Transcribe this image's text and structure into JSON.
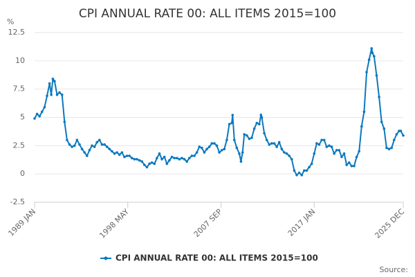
{
  "chart_data": {
    "type": "line",
    "title": "CPI ANNUAL RATE 00: ALL ITEMS 2015=100",
    "y_label": "%",
    "source": "Source:",
    "x": [
      1989.0,
      1989.25,
      1989.5,
      1989.75,
      1990.0,
      1990.25,
      1990.5,
      1990.67,
      1990.83,
      1991.0,
      1991.25,
      1991.5,
      1991.75,
      1992.0,
      1992.25,
      1992.5,
      1992.75,
      1993.0,
      1993.25,
      1993.5,
      1993.75,
      1994.0,
      1994.25,
      1994.5,
      1994.75,
      1995.0,
      1995.25,
      1995.5,
      1995.75,
      1996.0,
      1996.25,
      1996.5,
      1996.75,
      1997.0,
      1997.25,
      1997.5,
      1997.75,
      1998.0,
      1998.25,
      1998.5,
      1998.75,
      1999.0,
      1999.25,
      1999.5,
      1999.75,
      2000.0,
      2000.25,
      2000.5,
      2000.75,
      2001.0,
      2001.25,
      2001.5,
      2001.75,
      2002.0,
      2002.25,
      2002.5,
      2002.75,
      2003.0,
      2003.25,
      2003.5,
      2003.75,
      2004.0,
      2004.25,
      2004.5,
      2004.75,
      2005.0,
      2005.25,
      2005.5,
      2005.75,
      2006.0,
      2006.25,
      2006.5,
      2006.75,
      2007.0,
      2007.25,
      2007.5,
      2007.75,
      2008.0,
      2008.25,
      2008.5,
      2008.75,
      2008.83,
      2009.0,
      2009.25,
      2009.5,
      2009.67,
      2009.83,
      2010.0,
      2010.25,
      2010.5,
      2010.75,
      2011.0,
      2011.25,
      2011.5,
      2011.67,
      2011.75,
      2012.0,
      2012.25,
      2012.5,
      2012.75,
      2013.0,
      2013.25,
      2013.5,
      2013.75,
      2014.0,
      2014.25,
      2014.5,
      2014.75,
      2015.0,
      2015.25,
      2015.5,
      2015.75,
      2016.0,
      2016.25,
      2016.5,
      2016.75,
      2017.0,
      2017.25,
      2017.5,
      2017.75,
      2018.0,
      2018.25,
      2018.5,
      2018.75,
      2019.0,
      2019.25,
      2019.5,
      2019.75,
      2020.0,
      2020.25,
      2020.5,
      2020.75,
      2021.0,
      2021.25,
      2021.5,
      2021.75,
      2022.0,
      2022.25,
      2022.5,
      2022.75,
      2022.83,
      2023.0,
      2023.25,
      2023.5,
      2023.75,
      2024.0,
      2024.25,
      2024.5,
      2024.75,
      2025.0,
      2025.25,
      2025.5,
      2025.67,
      2025.917
    ],
    "series": [
      {
        "name": "CPI ANNUAL RATE 00: ALL ITEMS 2015=100",
        "color": "#0a78be",
        "values": [
          4.9,
          5.3,
          5.1,
          5.5,
          5.9,
          6.9,
          8.0,
          7.0,
          8.4,
          8.2,
          7.0,
          7.2,
          7.0,
          4.6,
          3.0,
          2.6,
          2.4,
          2.5,
          3.0,
          2.6,
          2.2,
          1.9,
          1.6,
          2.1,
          2.5,
          2.4,
          2.8,
          3.0,
          2.6,
          2.6,
          2.4,
          2.2,
          2.0,
          1.8,
          1.9,
          1.7,
          1.9,
          1.5,
          1.6,
          1.6,
          1.4,
          1.3,
          1.3,
          1.2,
          1.1,
          0.8,
          0.6,
          0.9,
          1.0,
          0.9,
          1.4,
          1.8,
          1.3,
          1.5,
          0.9,
          1.2,
          1.5,
          1.4,
          1.4,
          1.3,
          1.4,
          1.3,
          1.1,
          1.4,
          1.6,
          1.6,
          1.9,
          2.4,
          2.3,
          1.9,
          2.2,
          2.4,
          2.7,
          2.7,
          2.5,
          1.9,
          2.1,
          2.2,
          3.0,
          4.4,
          4.5,
          5.2,
          3.0,
          2.3,
          1.8,
          1.1,
          1.9,
          3.5,
          3.4,
          3.1,
          3.2,
          4.0,
          4.5,
          4.4,
          5.2,
          5.0,
          3.6,
          3.0,
          2.6,
          2.7,
          2.7,
          2.4,
          2.8,
          2.2,
          1.9,
          1.8,
          1.6,
          1.3,
          0.3,
          -0.1,
          0.1,
          -0.1,
          0.3,
          0.3,
          0.6,
          0.9,
          1.8,
          2.7,
          2.6,
          3.0,
          3.0,
          2.4,
          2.5,
          2.4,
          1.8,
          2.1,
          2.1,
          1.5,
          1.8,
          0.8,
          1.0,
          0.7,
          0.7,
          1.5,
          2.0,
          4.2,
          5.5,
          9.0,
          10.1,
          11.1,
          10.7,
          10.4,
          8.7,
          6.8,
          4.6,
          4.0,
          2.3,
          2.2,
          2.3,
          3.0,
          3.5,
          3.8,
          3.8,
          3.4
        ]
      }
    ],
    "xlim": [
      1989.0,
      2025.917
    ],
    "xticks": [
      {
        "value": 1989.0,
        "label": "1989 JAN"
      },
      {
        "value": 1998.333,
        "label": "1998 MAY"
      },
      {
        "value": 2007.667,
        "label": "2007 SEP"
      },
      {
        "value": 2017.0,
        "label": "2017 JAN"
      },
      {
        "value": 2025.917,
        "label": "2025 DEC"
      }
    ],
    "ylim": [
      -2.5,
      12.5
    ],
    "yticks": [
      -2.5,
      0,
      2.5,
      5,
      7.5,
      10,
      12.5
    ],
    "grid": true
  }
}
